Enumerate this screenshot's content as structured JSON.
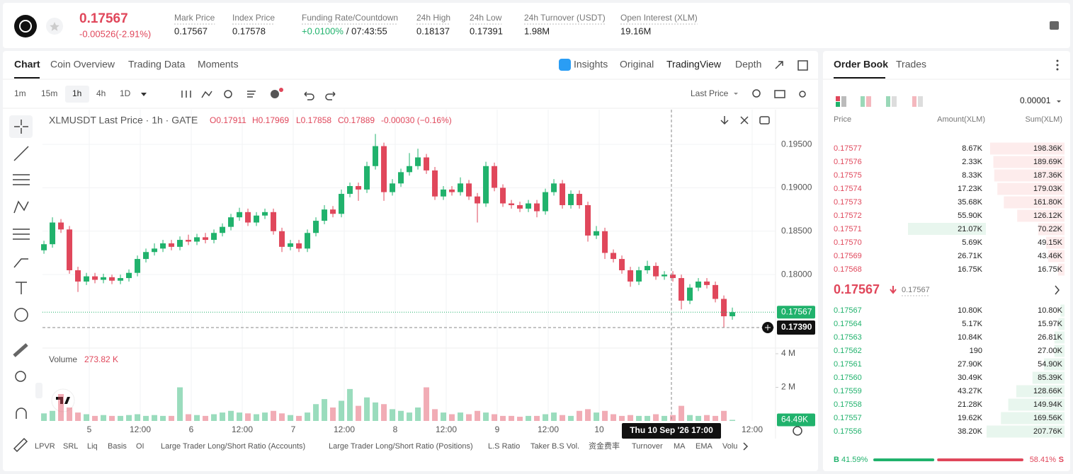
{
  "header": {
    "price": "0.17567",
    "change": "-0.00526(-2.91%)",
    "stats": [
      {
        "label": "Mark Price",
        "value": "0.17567"
      },
      {
        "label": "Index Price",
        "value": "0.17578"
      },
      {
        "label": "Funding Rate/Countdown",
        "value": "+0.0100%",
        "extra": "/ 07:43:55"
      },
      {
        "label": "24h High",
        "value": "0.18137"
      },
      {
        "label": "24h Low",
        "value": "0.17391"
      },
      {
        "label": "24h Turnover (USDT)",
        "value": "1.98M"
      },
      {
        "label": "Open Interest (XLM)",
        "value": "19.16M"
      }
    ]
  },
  "main_tabs": [
    "Chart",
    "Coin Overview",
    "Trading Data",
    "Moments"
  ],
  "chart_views": [
    "Insights",
    "Original",
    "TradingView",
    "Depth"
  ],
  "intervals": [
    "1m",
    "15m",
    "1h",
    "4h",
    "1D"
  ],
  "price_type": "Last Price",
  "chart": {
    "type": "candlestick",
    "legend": {
      "title": "XLMUSDT Last Price · 1h · GATE",
      "ohlc": [
        "O0.17911",
        "H0.17969",
        "L0.17858",
        "C0.17889"
      ],
      "change": "-0.00030 (−0.16%)"
    },
    "ylim": [
      0.1717,
      0.199
    ],
    "yticks": [
      {
        "value": 0.195,
        "label": "0.19500"
      },
      {
        "value": 0.19,
        "label": "0.19000"
      },
      {
        "value": 0.185,
        "label": "0.18500"
      },
      {
        "value": 0.18,
        "label": "0.18000"
      }
    ],
    "xlim": [
      -0.17,
      86.08
    ],
    "xticks": [
      {
        "value": 5.33,
        "label": "5"
      },
      {
        "value": 11.33,
        "label": "12:00"
      },
      {
        "value": 17.33,
        "label": "6"
      },
      {
        "value": 23.33,
        "label": "12:00"
      },
      {
        "value": 29.33,
        "label": "7"
      },
      {
        "value": 35.33,
        "label": "12:00"
      },
      {
        "value": 41.33,
        "label": "8"
      },
      {
        "value": 47.33,
        "label": "12:00"
      },
      {
        "value": 53.33,
        "label": "9"
      },
      {
        "value": 59.33,
        "label": "12:00"
      },
      {
        "value": 65.33,
        "label": "10"
      },
      {
        "value": 83.33,
        "label": "12:00"
      }
    ],
    "candles": [
      [
        0.1828,
        0.1839,
        0.1824,
        0.1835
      ],
      [
        0.1835,
        0.1866,
        0.1831,
        0.186
      ],
      [
        0.186,
        0.1864,
        0.1848,
        0.1852
      ],
      [
        0.1852,
        0.1856,
        0.1801,
        0.1805
      ],
      [
        0.1805,
        0.1809,
        0.178,
        0.1792
      ],
      [
        0.1792,
        0.1802,
        0.1788,
        0.1798
      ],
      [
        0.1798,
        0.1802,
        0.179,
        0.1794
      ],
      [
        0.1794,
        0.1801,
        0.179,
        0.1797
      ],
      [
        0.1797,
        0.18,
        0.1789,
        0.1793
      ],
      [
        0.1793,
        0.18,
        0.1789,
        0.1796
      ],
      [
        0.1796,
        0.1806,
        0.1792,
        0.1802
      ],
      [
        0.1802,
        0.1822,
        0.1798,
        0.1818
      ],
      [
        0.1818,
        0.183,
        0.1814,
        0.1826
      ],
      [
        0.1826,
        0.1836,
        0.1822,
        0.183
      ],
      [
        0.183,
        0.184,
        0.1826,
        0.1836
      ],
      [
        0.1836,
        0.184,
        0.1828,
        0.1832
      ],
      [
        0.1832,
        0.1844,
        0.1828,
        0.184
      ],
      [
        0.184,
        0.1846,
        0.1834,
        0.1838
      ],
      [
        0.1838,
        0.1847,
        0.1834,
        0.1843
      ],
      [
        0.1843,
        0.1848,
        0.1836,
        0.184
      ],
      [
        0.184,
        0.1852,
        0.1836,
        0.1848
      ],
      [
        0.1848,
        0.1859,
        0.1844,
        0.1855
      ],
      [
        0.1855,
        0.187,
        0.1851,
        0.1866
      ],
      [
        0.1866,
        0.1877,
        0.1862,
        0.1872
      ],
      [
        0.1872,
        0.1876,
        0.1856,
        0.186
      ],
      [
        0.186,
        0.1872,
        0.1856,
        0.1868
      ],
      [
        0.1868,
        0.1876,
        0.1864,
        0.1872
      ],
      [
        0.1872,
        0.1876,
        0.1846,
        0.185
      ],
      [
        0.185,
        0.1854,
        0.1826,
        0.1832
      ],
      [
        0.1832,
        0.184,
        0.1828,
        0.1836
      ],
      [
        0.1836,
        0.184,
        0.1826,
        0.183
      ],
      [
        0.183,
        0.1852,
        0.1826,
        0.1848
      ],
      [
        0.1848,
        0.1866,
        0.1844,
        0.1862
      ],
      [
        0.1862,
        0.188,
        0.1858,
        0.1875
      ],
      [
        0.1875,
        0.1879,
        0.1866,
        0.187
      ],
      [
        0.187,
        0.1898,
        0.1866,
        0.1893
      ],
      [
        0.1893,
        0.1906,
        0.1889,
        0.1902
      ],
      [
        0.1902,
        0.1906,
        0.1885,
        0.1898
      ],
      [
        0.1898,
        0.193,
        0.1894,
        0.1925
      ],
      [
        0.1925,
        0.1962,
        0.1921,
        0.1948
      ],
      [
        0.1948,
        0.1952,
        0.1885,
        0.1895
      ],
      [
        0.1895,
        0.191,
        0.1891,
        0.1905
      ],
      [
        0.1905,
        0.1922,
        0.1901,
        0.1918
      ],
      [
        0.1918,
        0.194,
        0.1914,
        0.1925
      ],
      [
        0.1925,
        0.1945,
        0.1921,
        0.1935
      ],
      [
        0.1935,
        0.1939,
        0.1916,
        0.192
      ],
      [
        0.192,
        0.1924,
        0.1886,
        0.189
      ],
      [
        0.189,
        0.1902,
        0.1886,
        0.1898
      ],
      [
        0.1898,
        0.1902,
        0.1891,
        0.1895
      ],
      [
        0.1895,
        0.1912,
        0.1891,
        0.1905
      ],
      [
        0.1905,
        0.1909,
        0.1886,
        0.189
      ],
      [
        0.189,
        0.1894,
        0.186,
        0.1882
      ],
      [
        0.1882,
        0.193,
        0.1878,
        0.1925
      ],
      [
        0.1925,
        0.1929,
        0.1896,
        0.19
      ],
      [
        0.19,
        0.1904,
        0.1878,
        0.1882
      ],
      [
        0.1882,
        0.1886,
        0.1876,
        0.188
      ],
      [
        0.188,
        0.1884,
        0.1872,
        0.1876
      ],
      [
        0.1876,
        0.1886,
        0.1872,
        0.1882
      ],
      [
        0.1882,
        0.1886,
        0.1866,
        0.1873
      ],
      [
        0.1873,
        0.1899,
        0.1869,
        0.1895
      ],
      [
        0.1895,
        0.191,
        0.1891,
        0.1905
      ],
      [
        0.1905,
        0.1909,
        0.1876,
        0.188
      ],
      [
        0.188,
        0.1897,
        0.1876,
        0.1893
      ],
      [
        0.1893,
        0.1897,
        0.1876,
        0.188
      ],
      [
        0.188,
        0.1884,
        0.1838,
        0.1845
      ],
      [
        0.1845,
        0.1856,
        0.1841,
        0.185
      ],
      [
        0.185,
        0.1854,
        0.1818,
        0.1825
      ],
      [
        0.1825,
        0.1829,
        0.1814,
        0.1818
      ],
      [
        0.1818,
        0.1822,
        0.1801,
        0.1805
      ],
      [
        0.1805,
        0.1809,
        0.1786,
        0.1792
      ],
      [
        0.1792,
        0.1809,
        0.1788,
        0.1805
      ],
      [
        0.1805,
        0.1816,
        0.1801,
        0.181
      ],
      [
        0.181,
        0.1814,
        0.1794,
        0.1798
      ],
      [
        0.1798,
        0.1804,
        0.1794,
        0.18
      ],
      [
        0.18,
        0.1804,
        0.1792,
        0.1796
      ],
      [
        0.1796,
        0.18,
        0.176,
        0.177
      ],
      [
        0.177,
        0.1789,
        0.1766,
        0.1785
      ],
      [
        0.1785,
        0.1796,
        0.1781,
        0.1792
      ],
      [
        0.1792,
        0.1796,
        0.1784,
        0.1788
      ],
      [
        0.1788,
        0.1792,
        0.1768,
        0.1772
      ],
      [
        0.1772,
        0.1776,
        0.1739,
        0.1752
      ],
      [
        0.1752,
        0.1762,
        0.1748,
        0.17567
      ]
    ],
    "volume_label": "Volume",
    "volume_value": "273.82 K",
    "volume_ylim": [
      0,
      4.21
    ],
    "volume_yticks": [
      {
        "value": 4,
        "label": "4 M"
      },
      {
        "value": 2,
        "label": "2 M"
      }
    ],
    "volumes": [
      0.45,
      0.6,
      1.6,
      0.8,
      0.5,
      0.4,
      0.3,
      0.35,
      0.3,
      0.3,
      0.35,
      0.4,
      0.3,
      0.35,
      0.3,
      0.3,
      2.0,
      0.4,
      0.35,
      0.3,
      0.4,
      0.5,
      0.6,
      0.5,
      0.45,
      0.4,
      0.5,
      0.6,
      0.45,
      0.35,
      0.3,
      0.5,
      1.0,
      1.3,
      0.8,
      1.2,
      1.9,
      0.9,
      1.4,
      1.1,
      1.0,
      0.7,
      0.6,
      0.5,
      0.8,
      2.0,
      0.7,
      0.5,
      0.4,
      0.5,
      0.4,
      0.6,
      0.5,
      0.4,
      0.3,
      0.3,
      0.25,
      0.3,
      0.3,
      0.4,
      0.5,
      0.35,
      0.3,
      0.6,
      0.7,
      0.5,
      0.6,
      0.4,
      0.3,
      0.35,
      0.3,
      0.3,
      0.4,
      0.3,
      0.35,
      0.9,
      0.35,
      0.3,
      0.35,
      0.3,
      0.6,
      0.06449
    ],
    "last_volume_label": "64.49K",
    "last_price": 0.17567,
    "crosshair": {
      "x": 73.83,
      "time_label": "Thu 10 Sep '26  17:00",
      "price": {
        "value": 0.1739,
        "label": "0.17390"
      }
    }
  },
  "indicators": [
    "LPVR",
    "SRL",
    "Liq",
    "Basis",
    "OI",
    "Large Trader Long/Short Ratio (Accounts)",
    "Large Trader Long/Short Ratio (Positions)",
    "L.S Ratio",
    "Taker B.S Vol.",
    "资金费率",
    "Turnover",
    "MA",
    "EMA",
    "Volu"
  ],
  "order_book": {
    "tabs": [
      "Order Book",
      "Trades"
    ],
    "precision": "0.00001",
    "columns": [
      "Price",
      "Amount(XLM)",
      "Sum(XLM)"
    ],
    "asks": [
      {
        "price": "0.17577",
        "amount": "8.67K",
        "sum": {
          "value": 198360,
          "label": "198.36K"
        }
      },
      {
        "price": "0.17576",
        "amount": "2.33K",
        "sum": {
          "value": 189690,
          "label": "189.69K"
        }
      },
      {
        "price": "0.17575",
        "amount": "8.33K",
        "sum": {
          "value": 187360,
          "label": "187.36K"
        }
      },
      {
        "price": "0.17574",
        "amount": "17.23K",
        "sum": {
          "value": 179030,
          "label": "179.03K"
        }
      },
      {
        "price": "0.17573",
        "amount": "35.68K",
        "sum": {
          "value": 161800,
          "label": "161.80K"
        }
      },
      {
        "price": "0.17572",
        "amount": "55.90K",
        "sum": {
          "value": 126120,
          "label": "126.12K"
        }
      },
      {
        "price": "0.17571",
        "amount": "21.07K",
        "sum": {
          "value": 70220,
          "label": "70.22K"
        }
      },
      {
        "price": "0.17570",
        "amount": "5.69K",
        "sum": {
          "value": 49150,
          "label": "49.15K"
        }
      },
      {
        "price": "0.17569",
        "amount": "26.71K",
        "sum": {
          "value": 43460,
          "label": "43.46K"
        }
      },
      {
        "price": "0.17568",
        "amount": "16.75K",
        "sum": {
          "value": 16750,
          "label": "16.75K"
        }
      }
    ],
    "mid_price": "0.17567",
    "mark_price": "0.17567",
    "bids": [
      {
        "price": "0.17567",
        "amount": "10.80K",
        "sum": {
          "value": 10800,
          "label": "10.80K"
        }
      },
      {
        "price": "0.17564",
        "amount": "5.17K",
        "sum": {
          "value": 15970,
          "label": "15.97K"
        }
      },
      {
        "price": "0.17563",
        "amount": "10.84K",
        "sum": {
          "value": 26810,
          "label": "26.81K"
        }
      },
      {
        "price": "0.17562",
        "amount": "190",
        "sum": {
          "value": 27000,
          "label": "27.00K"
        }
      },
      {
        "price": "0.17561",
        "amount": "27.90K",
        "sum": {
          "value": 54900,
          "label": "54.90K"
        }
      },
      {
        "price": "0.17560",
        "amount": "30.49K",
        "sum": {
          "value": 85390,
          "label": "85.39K"
        }
      },
      {
        "price": "0.17559",
        "amount": "43.27K",
        "sum": {
          "value": 128660,
          "label": "128.66K"
        }
      },
      {
        "price": "0.17558",
        "amount": "21.28K",
        "sum": {
          "value": 149940,
          "label": "149.94K"
        }
      },
      {
        "price": "0.17557",
        "amount": "19.62K",
        "sum": {
          "value": 169560,
          "label": "169.56K"
        }
      },
      {
        "price": "0.17556",
        "amount": "38.20K",
        "sum": {
          "value": 207760,
          "label": "207.76K"
        }
      }
    ],
    "ratio": {
      "buy_label": "B",
      "buy": {
        "value": 41.59,
        "label": "41.59%"
      },
      "sell": {
        "value": 58.41,
        "label": "58.41%"
      },
      "sell_label": "S"
    }
  }
}
